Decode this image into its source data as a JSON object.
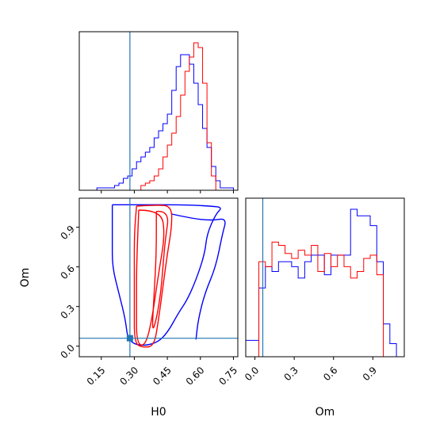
{
  "chart_data": {
    "type": "corner",
    "parameters": [
      "H0",
      "Om"
    ],
    "truth": {
      "H0": 0.28,
      "Om": 0.06
    },
    "series_colors": {
      "series_blue": "#0000ff",
      "series_red": "#ff0000",
      "truth": "#1f77b4"
    },
    "panels": [
      {
        "id": "hist-H0",
        "type": "histogram",
        "xlim": [
          0.05,
          0.77
        ],
        "bins": [
          0.05,
          0.07,
          0.09,
          0.11,
          0.13,
          0.15,
          0.17,
          0.19,
          0.21,
          0.23,
          0.25,
          0.27,
          0.29,
          0.31,
          0.33,
          0.35,
          0.37,
          0.39,
          0.41,
          0.43,
          0.45,
          0.47,
          0.49,
          0.51,
          0.53,
          0.55,
          0.57,
          0.59,
          0.61,
          0.63,
          0.65,
          0.67,
          0.69,
          0.71,
          0.73,
          0.75,
          0.77
        ],
        "series": [
          {
            "color": "#0000ff",
            "counts": [
              0,
              0,
              0,
              0,
              1,
              1,
              1,
              1,
              2,
              3,
              5,
              6,
              9,
              12,
              14,
              16,
              18,
              22,
              25,
              28,
              32,
              42,
              52,
              57,
              57,
              53,
              45,
              36,
              26,
              18,
              10,
              4,
              1,
              1,
              1,
              0
            ]
          },
          {
            "color": "#ff0000",
            "counts": [
              0,
              0,
              0,
              0,
              0,
              0,
              0,
              0,
              0,
              0,
              0,
              0,
              0,
              0,
              2,
              3,
              4,
              6,
              9,
              14,
              19,
              24,
              31,
              40,
              50,
              56,
              62,
              60,
              45,
              20,
              6,
              0,
              0,
              0,
              0,
              0
            ]
          }
        ]
      },
      {
        "id": "hist-Om",
        "type": "histogram",
        "xlim": [
          -0.07,
          1.14
        ],
        "bins": [
          -0.07,
          -0.02,
          0.03,
          0.08,
          0.13,
          0.18,
          0.23,
          0.28,
          0.33,
          0.38,
          0.43,
          0.48,
          0.53,
          0.58,
          0.63,
          0.68,
          0.73,
          0.78,
          0.83,
          0.88,
          0.93,
          0.98,
          1.03,
          1.08,
          1.13
        ],
        "series": [
          {
            "color": "#0000ff",
            "counts": [
              0.1,
              0.1,
              0.42,
              0.55,
              0.52,
              0.58,
              0.58,
              0.55,
              0.48,
              0.58,
              0.62,
              0.62,
              0.5,
              0.62,
              0.62,
              0.62,
              0.9,
              0.86,
              0.86,
              0.8,
              0.58,
              0.2,
              0.08,
              0
            ]
          },
          {
            "color": "#ff0000",
            "counts": [
              0,
              0,
              0.58,
              0.55,
              0.7,
              0.68,
              0.63,
              0.6,
              0.65,
              0.62,
              0.68,
              0.52,
              0.63,
              0.55,
              0.62,
              0.55,
              0.48,
              0.52,
              0.6,
              0.62,
              0.5,
              0,
              0,
              0
            ]
          }
        ]
      },
      {
        "id": "contour-H0-Om",
        "type": "contour",
        "xlim": [
          0.05,
          0.77
        ],
        "ylim": [
          -0.08,
          1.12
        ],
        "contours": [
          {
            "color": "#0000ff",
            "level": "outer",
            "points": [
              [
                0.2,
                1.07
              ],
              [
                0.35,
                1.07
              ],
              [
                0.53,
                1.07
              ],
              [
                0.65,
                1.06
              ],
              [
                0.7,
                1.05
              ],
              [
                0.67,
                1.0
              ],
              [
                0.63,
                0.85
              ],
              [
                0.62,
                0.7
              ],
              [
                0.58,
                0.5
              ],
              [
                0.54,
                0.35
              ],
              [
                0.5,
                0.25
              ],
              [
                0.45,
                0.1
              ],
              [
                0.4,
                0.02
              ],
              [
                0.32,
                0.0
              ],
              [
                0.27,
                0.05
              ],
              [
                0.26,
                0.2
              ],
              [
                0.23,
                0.4
              ],
              [
                0.2,
                0.6
              ],
              [
                0.2,
                0.8
              ],
              [
                0.2,
                0.95
              ],
              [
                0.2,
                1.07
              ]
            ]
          },
          {
            "color": "#0000ff",
            "level": "right-arm",
            "points": [
              [
                0.47,
                1.0
              ],
              [
                0.55,
                0.97
              ],
              [
                0.65,
                0.95
              ],
              [
                0.72,
                0.97
              ],
              [
                0.7,
                0.85
              ],
              [
                0.67,
                0.6
              ],
              [
                0.62,
                0.4
              ],
              [
                0.59,
                0.2
              ],
              [
                0.58,
                0.05
              ]
            ]
          },
          {
            "color": "#ff0000",
            "level": "outer",
            "points": [
              [
                0.31,
                1.06
              ],
              [
                0.4,
                1.07
              ],
              [
                0.47,
                1.06
              ],
              [
                0.47,
                0.9
              ],
              [
                0.45,
                0.7
              ],
              [
                0.43,
                0.45
              ],
              [
                0.41,
                0.2
              ],
              [
                0.39,
                0.0
              ],
              [
                0.34,
                -0.01
              ],
              [
                0.3,
                0.02
              ],
              [
                0.3,
                0.3
              ],
              [
                0.3,
                0.6
              ],
              [
                0.3,
                0.85
              ],
              [
                0.31,
                1.06
              ]
            ]
          },
          {
            "color": "#ff0000",
            "level": "inner",
            "points": [
              [
                0.32,
                1.03
              ],
              [
                0.42,
                1.03
              ],
              [
                0.44,
                0.85
              ],
              [
                0.41,
                0.55
              ],
              [
                0.38,
                0.2
              ],
              [
                0.35,
                0.0
              ],
              [
                0.31,
                0.02
              ],
              [
                0.31,
                0.3
              ],
              [
                0.31,
                0.6
              ],
              [
                0.32,
                1.03
              ]
            ]
          },
          {
            "color": "#ff0000",
            "level": "core",
            "points": [
              [
                0.4,
                1.02
              ],
              [
                0.46,
                1.03
              ],
              [
                0.44,
                0.8
              ],
              [
                0.43,
                0.6
              ],
              [
                0.42,
                0.4
              ],
              [
                0.4,
                0.2
              ],
              [
                0.38,
                0.1
              ],
              [
                0.39,
                0.4
              ],
              [
                0.4,
                0.7
              ],
              [
                0.4,
                1.02
              ]
            ]
          }
        ],
        "truth_point": [
          0.28,
          0.06
        ]
      }
    ],
    "x_ticks_H0": [
      "0.15",
      "0.30",
      "0.45",
      "0.60",
      "0.75"
    ],
    "y_ticks_Om": [
      "0.0",
      "0.3",
      "0.6",
      "0.9"
    ],
    "x_ticks_Om": [
      "0.0",
      "0.3",
      "0.6",
      "0.9"
    ],
    "xlabel_left": "H0",
    "xlabel_right": "Om",
    "ylabel": "Om"
  }
}
